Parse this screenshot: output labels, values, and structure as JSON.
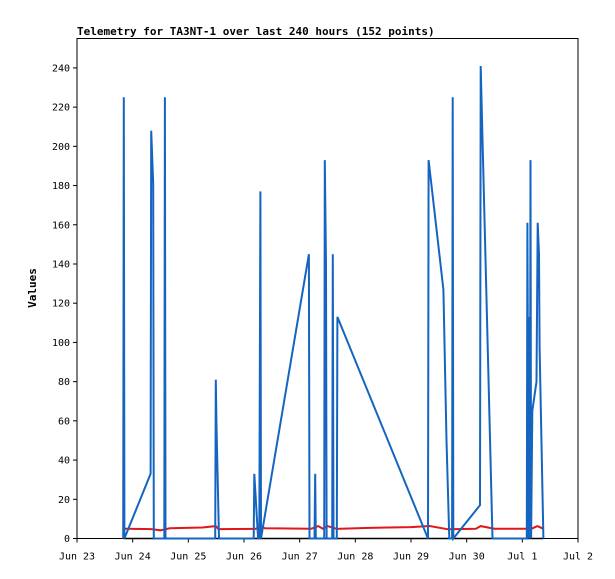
{
  "chart_data": {
    "type": "line",
    "title": "Telemetry for TA3NT-1 over last 240 hours (152 points)",
    "xlabel": "",
    "ylabel": "Values",
    "xlim": [
      "2024-06-23",
      "2024-07-02"
    ],
    "ylim": [
      0,
      255
    ],
    "x_ticks": [
      "Jun 23",
      "Jun 24",
      "Jun 25",
      "Jun 26",
      "Jun 27",
      "Jun 28",
      "Jun 29",
      "Jun 30",
      "Jul 1",
      "Jul 2"
    ],
    "y_ticks": [
      0,
      20,
      40,
      60,
      80,
      100,
      120,
      140,
      160,
      180,
      200,
      220,
      240
    ],
    "grid": false,
    "legend": "none",
    "series": [
      {
        "color": "#1565c0",
        "points": [
          [
            "2024-06-23 19:55",
            0
          ],
          [
            "2024-06-23 20:11",
            225
          ],
          [
            "2024-06-23 20:27",
            0
          ],
          [
            "2024-06-24 07:43",
            33
          ],
          [
            "2024-06-24 07:59",
            208
          ],
          [
            "2024-06-24 08:51",
            181
          ],
          [
            "2024-06-24 09:07",
            0
          ],
          [
            "2024-06-24 13:38",
            0
          ],
          [
            "2024-06-24 13:54",
            225
          ],
          [
            "2024-06-24 14:10",
            0
          ],
          [
            "2024-06-25 11:34",
            0
          ],
          [
            "2024-06-25 11:50",
            81
          ],
          [
            "2024-06-25 12:06",
            60
          ],
          [
            "2024-06-25 13:14",
            0
          ],
          [
            "2024-06-26 04:10",
            0
          ],
          [
            "2024-06-26 04:26",
            33
          ],
          [
            "2024-06-26 06:05",
            0
          ],
          [
            "2024-06-26 06:37",
            0
          ],
          [
            "2024-06-26 07:05",
            177
          ],
          [
            "2024-06-26 07:21",
            0
          ],
          [
            "2024-06-27 03:58",
            145
          ],
          [
            "2024-06-27 04:14",
            0
          ],
          [
            "2024-06-27 06:25",
            0
          ],
          [
            "2024-06-27 06:41",
            33
          ],
          [
            "2024-06-27 06:57",
            0
          ],
          [
            "2024-06-27 10:34",
            0
          ],
          [
            "2024-06-27 10:50",
            193
          ],
          [
            "2024-06-27 11:22",
            140
          ],
          [
            "2024-06-27 11:38",
            0
          ],
          [
            "2024-06-27 14:02",
            0
          ],
          [
            "2024-06-27 14:18",
            145
          ],
          [
            "2024-06-27 14:34",
            0
          ],
          [
            "2024-06-27 16:01",
            0
          ],
          [
            "2024-06-27 16:17",
            113
          ],
          [
            "2024-06-29 07:19",
            0
          ],
          [
            "2024-06-29 07:35",
            193
          ],
          [
            "2024-06-29 13:58",
            127
          ],
          [
            "2024-06-29 15:18",
            50
          ],
          [
            "2024-06-29 16:30",
            0
          ],
          [
            "2024-06-29 17:42",
            0
          ],
          [
            "2024-06-29 17:58",
            225
          ],
          [
            "2024-06-29 18:14",
            0
          ],
          [
            "2024-06-30 05:46",
            17
          ],
          [
            "2024-06-30 06:02",
            241
          ],
          [
            "2024-06-30 06:34",
            216
          ],
          [
            "2024-06-30 11:07",
            0
          ],
          [
            "2024-07-01 01:55",
            0
          ],
          [
            "2024-07-01 02:11",
            161
          ],
          [
            "2024-07-01 02:43",
            0
          ],
          [
            "2024-07-01 02:59",
            113
          ],
          [
            "2024-07-01 03:15",
            0
          ],
          [
            "2024-07-01 03:31",
            193
          ],
          [
            "2024-07-01 03:47",
            0
          ],
          [
            "2024-07-01 04:19",
            65
          ],
          [
            "2024-07-01 06:06",
            80
          ],
          [
            "2024-07-01 06:38",
            161
          ],
          [
            "2024-07-01 07:10",
            145
          ],
          [
            "2024-07-01 07:26",
            97
          ],
          [
            "2024-07-01 09:05",
            0
          ]
        ]
      },
      {
        "color": "#e0161b",
        "points": [
          [
            "2024-06-23 20:00",
            5.0
          ],
          [
            "2024-06-24 08:00",
            4.8
          ],
          [
            "2024-06-24 12:00",
            4.2
          ],
          [
            "2024-06-24 16:00",
            5.2
          ],
          [
            "2024-06-25 06:00",
            5.6
          ],
          [
            "2024-06-25 11:50",
            6.3
          ],
          [
            "2024-06-25 13:00",
            4.8
          ],
          [
            "2024-06-26 05:00",
            4.9
          ],
          [
            "2024-06-26 07:00",
            6.3
          ],
          [
            "2024-06-26 09:00",
            5.2
          ],
          [
            "2024-06-27 05:00",
            5.0
          ],
          [
            "2024-06-27 08:00",
            6.3
          ],
          [
            "2024-06-27 10:00",
            5.0
          ],
          [
            "2024-06-27 12:00",
            6.3
          ],
          [
            "2024-06-27 16:00",
            4.9
          ],
          [
            "2024-06-28 06:00",
            5.4
          ],
          [
            "2024-06-29 00:00",
            5.8
          ],
          [
            "2024-06-29 08:00",
            6.4
          ],
          [
            "2024-06-29 16:00",
            4.7
          ],
          [
            "2024-06-30 04:00",
            5.0
          ],
          [
            "2024-06-30 06:00",
            6.3
          ],
          [
            "2024-06-30 12:00",
            5.0
          ],
          [
            "2024-07-01 04:00",
            5.0
          ],
          [
            "2024-07-01 06:30",
            6.3
          ],
          [
            "2024-07-01 09:00",
            5.0
          ]
        ]
      },
      {
        "color": "#000000",
        "points": [
          [
            "2024-06-23 20:00",
            0
          ],
          [
            "2024-07-01 09:00",
            0
          ]
        ]
      }
    ]
  }
}
